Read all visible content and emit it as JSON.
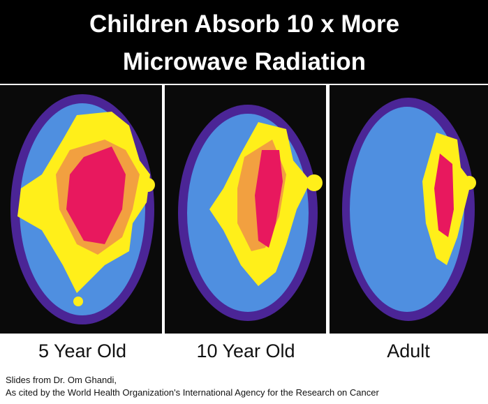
{
  "header": {
    "title_lines": [
      "Children Absorb 10 x More",
      "Microwave Radiation"
    ]
  },
  "panels": [
    {
      "label": "5 Year Old"
    },
    {
      "label": "10 Year Old"
    },
    {
      "label": "Adult"
    }
  ],
  "caption": {
    "lines": [
      "Slides from Dr. Om Ghandi,",
      "As cited by the World Health Organization's International Agency for the Research on Cancer"
    ]
  }
}
